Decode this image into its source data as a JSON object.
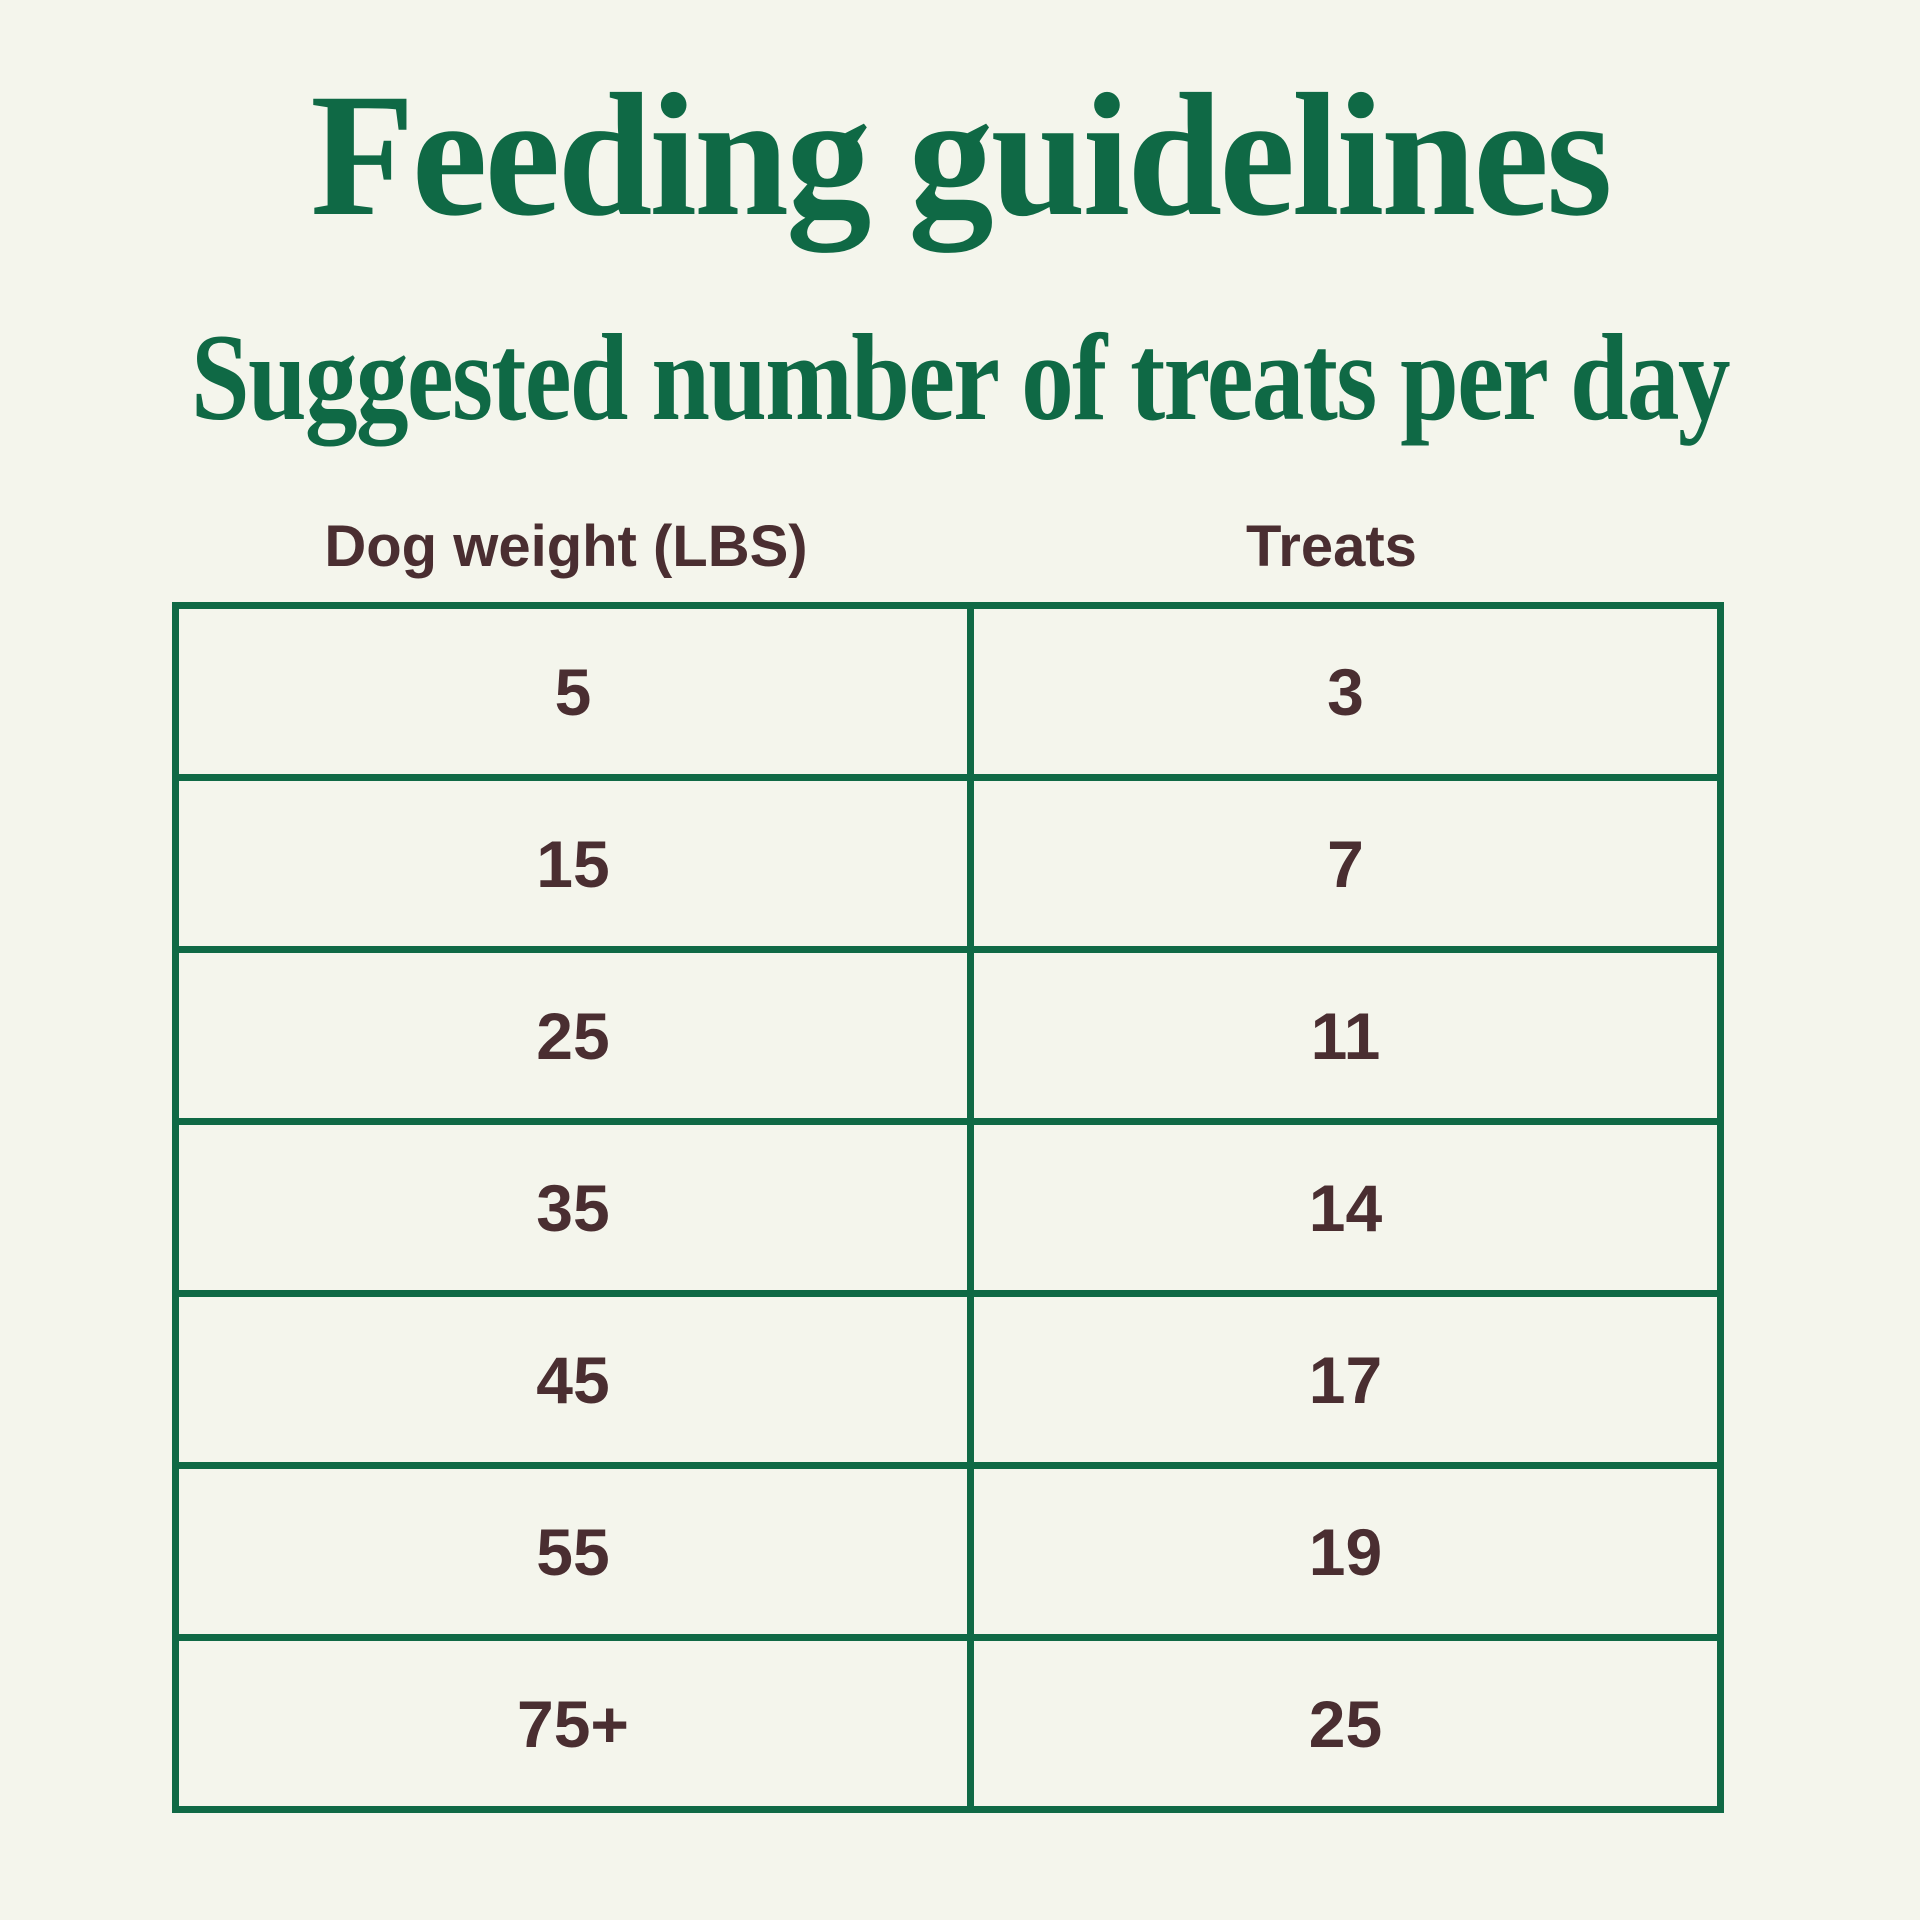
{
  "title": "Feeding guidelines",
  "subtitle": "Suggested number of treats per day",
  "colors": {
    "accent_green": "#0f6945",
    "text_brown": "#4a2e31",
    "background": "#f4f5ec"
  },
  "chart_data": {
    "type": "table",
    "title": "Feeding guidelines",
    "subtitle": "Suggested number of treats per day",
    "columns": [
      "Dog weight (LBS)",
      "Treats"
    ],
    "rows": [
      [
        "5",
        "3"
      ],
      [
        "15",
        "7"
      ],
      [
        "25",
        "11"
      ],
      [
        "35",
        "14"
      ],
      [
        "45",
        "17"
      ],
      [
        "55",
        "19"
      ],
      [
        "75+",
        "25"
      ]
    ],
    "layout_hints": {
      "grid": "on",
      "border_color": "#0f6945",
      "value_color": "#4a2e31",
      "header_position": "above-table-outside-borders"
    }
  }
}
